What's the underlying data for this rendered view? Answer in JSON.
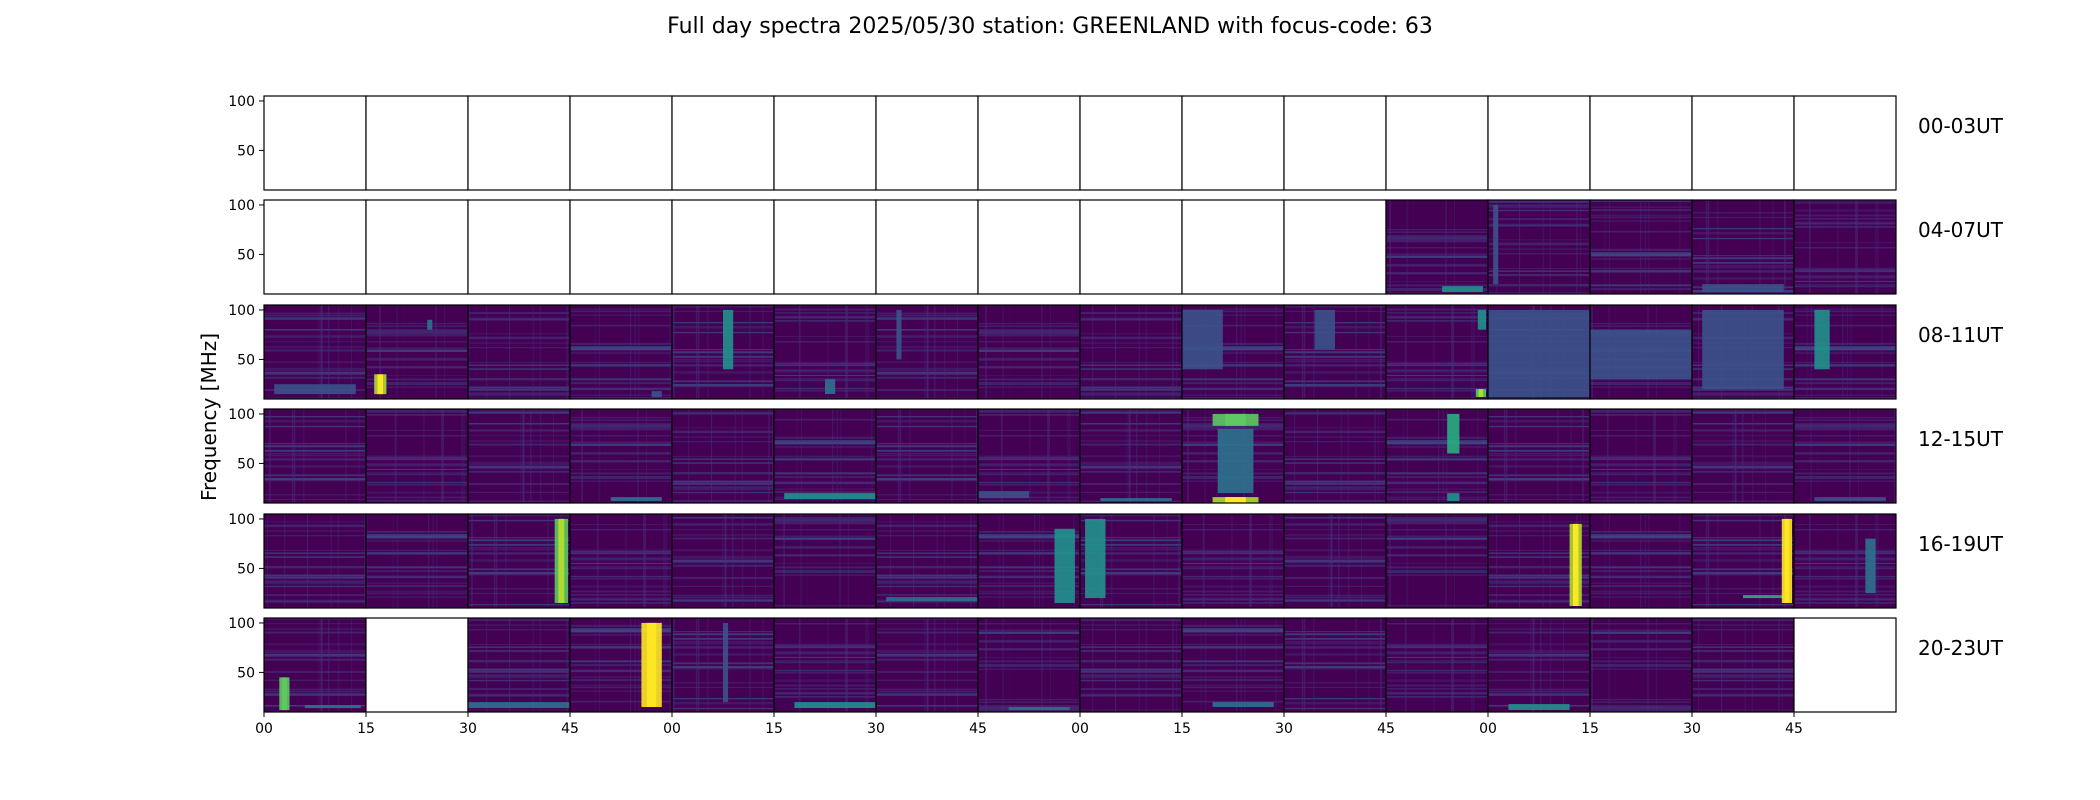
{
  "chart_data": {
    "type": "heatmap",
    "title": "Full day spectra 2025/05/30 station: GREENLAND with focus-code: 63",
    "ylabel": "Frequency [MHz]",
    "xlabel": "",
    "ylim": [
      10,
      105
    ],
    "y_ticks": [
      "100",
      "50"
    ],
    "y_tick_values": [
      100,
      50
    ],
    "x_ticks": [
      "00",
      "15",
      "30",
      "45",
      "00",
      "15",
      "30",
      "45",
      "00",
      "15",
      "30",
      "45",
      "00",
      "15",
      "30",
      "45"
    ],
    "panels_per_row": 16,
    "panel_minutes": 15,
    "colormap": [
      "#440154",
      "#472d7b",
      "#3b528b",
      "#2c728e",
      "#21918c",
      "#28ae80",
      "#5ec962",
      "#addc30",
      "#fde725"
    ],
    "rows": [
      {
        "label": "00-03UT",
        "panels": [
          "empty",
          "empty",
          "empty",
          "empty",
          "empty",
          "empty",
          "empty",
          "empty",
          "empty",
          "empty",
          "empty",
          "empty",
          "empty",
          "empty",
          "empty",
          "empty"
        ]
      },
      {
        "label": "04-07UT",
        "panels": [
          "empty",
          "empty",
          "empty",
          "empty",
          "empty",
          "empty",
          "empty",
          "empty",
          "empty",
          "empty",
          "empty",
          {
            "bursts": [
              {
                "t0": 0.55,
                "t1": 0.95,
                "f0": 12,
                "f1": 18,
                "level": 0.45
              }
            ]
          },
          {
            "bursts": [
              {
                "t0": 0.05,
                "t1": 0.1,
                "f0": 20,
                "f1": 100,
                "level": 0.25
              }
            ]
          },
          {
            "bursts": []
          },
          {
            "bursts": [
              {
                "t0": 0.1,
                "t1": 0.9,
                "f0": 12,
                "f1": 20,
                "level": 0.3
              }
            ]
          },
          {
            "bursts": []
          }
        ]
      },
      {
        "label": "08-11UT",
        "panels": [
          {
            "bursts": [
              {
                "t0": 0.1,
                "t1": 0.9,
                "f0": 15,
                "f1": 25,
                "level": 0.3
              }
            ]
          },
          {
            "bursts": [
              {
                "t0": 0.08,
                "t1": 0.2,
                "f0": 15,
                "f1": 35,
                "level": 0.85
              },
              {
                "t0": 0.6,
                "t1": 0.65,
                "f0": 80,
                "f1": 90,
                "level": 0.4
              }
            ]
          },
          {
            "bursts": []
          },
          {
            "bursts": [
              {
                "t0": 0.8,
                "t1": 0.9,
                "f0": 12,
                "f1": 18,
                "level": 0.3
              }
            ]
          },
          {
            "bursts": [
              {
                "t0": 0.5,
                "t1": 0.6,
                "f0": 40,
                "f1": 100,
                "level": 0.55
              }
            ]
          },
          {
            "bursts": [
              {
                "t0": 0.5,
                "t1": 0.6,
                "f0": 15,
                "f1": 30,
                "level": 0.35
              }
            ]
          },
          {
            "bursts": [
              {
                "t0": 0.2,
                "t1": 0.25,
                "f0": 50,
                "f1": 100,
                "level": 0.25
              }
            ]
          },
          {
            "bursts": []
          },
          {
            "bursts": []
          },
          {
            "bursts": [
              {
                "t0": 0.0,
                "t1": 0.4,
                "f0": 40,
                "f1": 100,
                "level": 0.25
              }
            ]
          },
          {
            "bursts": [
              {
                "t0": 0.3,
                "t1": 0.5,
                "f0": 60,
                "f1": 100,
                "level": 0.25
              }
            ]
          },
          {
            "bursts": [
              {
                "t0": 0.88,
                "t1": 0.98,
                "f0": 12,
                "f1": 20,
                "level": 0.75
              },
              {
                "t0": 0.9,
                "t1": 0.98,
                "f0": 80,
                "f1": 100,
                "level": 0.45
              }
            ]
          },
          {
            "bursts": [
              {
                "t0": 0.0,
                "t1": 1.0,
                "f0": 12,
                "f1": 100,
                "level": 0.28
              }
            ]
          },
          {
            "bursts": [
              {
                "t0": 0.0,
                "t1": 1.0,
                "f0": 30,
                "f1": 80,
                "level": 0.3
              }
            ]
          },
          {
            "bursts": [
              {
                "t0": 0.1,
                "t1": 0.9,
                "f0": 20,
                "f1": 100,
                "level": 0.3
              }
            ]
          },
          {
            "bursts": [
              {
                "t0": 0.2,
                "t1": 0.35,
                "f0": 40,
                "f1": 100,
                "level": 0.5
              }
            ]
          }
        ]
      },
      {
        "label": "12-15UT",
        "panels": [
          {
            "bursts": []
          },
          {
            "bursts": []
          },
          {
            "bursts": []
          },
          {
            "bursts": [
              {
                "t0": 0.4,
                "t1": 0.9,
                "f0": 12,
                "f1": 16,
                "level": 0.4
              }
            ]
          },
          {
            "bursts": []
          },
          {
            "bursts": [
              {
                "t0": 0.1,
                "t1": 1.0,
                "f0": 14,
                "f1": 20,
                "level": 0.45
              }
            ]
          },
          {
            "bursts": []
          },
          {
            "bursts": [
              {
                "t0": 0.0,
                "t1": 0.5,
                "f0": 15,
                "f1": 22,
                "level": 0.3
              }
            ]
          },
          {
            "bursts": [
              {
                "t0": 0.2,
                "t1": 0.9,
                "f0": 12,
                "f1": 15,
                "level": 0.35
              }
            ]
          },
          {
            "bursts": [
              {
                "t0": 0.3,
                "t1": 0.75,
                "f0": 88,
                "f1": 100,
                "level": 0.7
              },
              {
                "t0": 0.3,
                "t1": 0.75,
                "f0": 10,
                "f1": 16,
                "level": 0.85
              },
              {
                "t0": 0.35,
                "t1": 0.7,
                "f0": 20,
                "f1": 85,
                "level": 0.4
              }
            ]
          },
          {
            "bursts": []
          },
          {
            "bursts": [
              {
                "t0": 0.6,
                "t1": 0.72,
                "f0": 60,
                "f1": 100,
                "level": 0.6
              },
              {
                "t0": 0.6,
                "t1": 0.72,
                "f0": 12,
                "f1": 20,
                "level": 0.55
              }
            ]
          },
          {
            "bursts": []
          },
          {
            "bursts": []
          },
          {
            "bursts": []
          },
          {
            "bursts": [
              {
                "t0": 0.2,
                "t1": 0.9,
                "f0": 12,
                "f1": 16,
                "level": 0.3
              }
            ]
          }
        ]
      },
      {
        "label": "16-19UT",
        "panels": [
          {
            "bursts": []
          },
          {
            "bursts": []
          },
          {
            "bursts": [
              {
                "t0": 0.85,
                "t1": 0.98,
                "f0": 15,
                "f1": 100,
                "level": 0.75
              }
            ]
          },
          {
            "bursts": []
          },
          {
            "bursts": []
          },
          {
            "bursts": []
          },
          {
            "bursts": [
              {
                "t0": 0.1,
                "t1": 1.0,
                "f0": 17,
                "f1": 21,
                "level": 0.4
              }
            ]
          },
          {
            "bursts": [
              {
                "t0": 0.75,
                "t1": 0.95,
                "f0": 15,
                "f1": 90,
                "level": 0.45
              }
            ]
          },
          {
            "bursts": [
              {
                "t0": 0.05,
                "t1": 0.25,
                "f0": 20,
                "f1": 100,
                "level": 0.5
              }
            ]
          },
          {
            "bursts": []
          },
          {
            "bursts": []
          },
          {
            "bursts": []
          },
          {
            "bursts": [
              {
                "t0": 0.8,
                "t1": 0.92,
                "f0": 12,
                "f1": 95,
                "level": 0.85
              }
            ]
          },
          {
            "bursts": []
          },
          {
            "bursts": [
              {
                "t0": 0.5,
                "t1": 0.95,
                "f0": 20,
                "f1": 23,
                "level": 0.6
              },
              {
                "t0": 0.88,
                "t1": 0.98,
                "f0": 15,
                "f1": 100,
                "level": 0.95
              }
            ]
          },
          {
            "bursts": [
              {
                "t0": 0.7,
                "t1": 0.8,
                "f0": 25,
                "f1": 80,
                "level": 0.35
              }
            ]
          }
        ]
      },
      {
        "label": "20-23UT",
        "panels": [
          {
            "bursts": [
              {
                "t0": 0.15,
                "t1": 0.25,
                "f0": 12,
                "f1": 45,
                "level": 0.7
              },
              {
                "t0": 0.4,
                "t1": 0.95,
                "f0": 14,
                "f1": 17,
                "level": 0.4
              }
            ]
          },
          "empty",
          {
            "bursts": [
              {
                "t0": 0.0,
                "t1": 1.0,
                "f0": 14,
                "f1": 20,
                "level": 0.4
              }
            ]
          },
          {
            "bursts": [
              {
                "t0": 0.7,
                "t1": 0.9,
                "f0": 15,
                "f1": 100,
                "level": 0.95
              }
            ]
          },
          {
            "bursts": [
              {
                "t0": 0.5,
                "t1": 0.55,
                "f0": 20,
                "f1": 100,
                "level": 0.3
              }
            ]
          },
          {
            "bursts": [
              {
                "t0": 0.2,
                "t1": 1.0,
                "f0": 14,
                "f1": 20,
                "level": 0.45
              }
            ]
          },
          {
            "bursts": []
          },
          {
            "bursts": [
              {
                "t0": 0.3,
                "t1": 0.9,
                "f0": 12,
                "f1": 15,
                "level": 0.35
              }
            ]
          },
          {
            "bursts": []
          },
          {
            "bursts": [
              {
                "t0": 0.3,
                "t1": 0.9,
                "f0": 15,
                "f1": 20,
                "level": 0.35
              }
            ]
          },
          {
            "bursts": []
          },
          {
            "bursts": []
          },
          {
            "bursts": [
              {
                "t0": 0.2,
                "t1": 0.8,
                "f0": 12,
                "f1": 18,
                "level": 0.55
              }
            ]
          },
          {
            "bursts": []
          },
          {
            "bursts": []
          },
          "empty"
        ]
      }
    ]
  }
}
